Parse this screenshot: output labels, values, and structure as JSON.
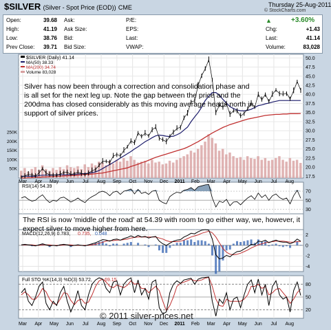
{
  "header": {
    "symbol": "$SILVER",
    "subtitle": "(Silver - Spot Price (EOD))",
    "exchange": "CME",
    "date": "Thursday 25-Aug-2011",
    "copyright": "© StockCharts.com"
  },
  "quote": {
    "open_label": "Open:",
    "open": "39.68",
    "high_label": "High:",
    "high": "41.19",
    "low_label": "Low:",
    "low": "38.76",
    "prev_label": "Prev Close:",
    "prev": "39.71",
    "ask_label": "Ask:",
    "ask": "",
    "asksize_label": "Ask Size:",
    "asksize": "",
    "bid_label": "Bid:",
    "bid": "",
    "bidsize_label": "Bid Size:",
    "bidsize": "",
    "pe_label": "P/E:",
    "pe": "",
    "eps_label": "EPS:",
    "eps": "",
    "last_label": "Last:",
    "last_mid": "",
    "vwap_label": "VWAP:",
    "vwap": "",
    "pct_change": "+3.60%",
    "chg_label": "Chg:",
    "chg": "+1.43",
    "last2_label": "Last:",
    "last": "41.14",
    "volume_label": "Volume:",
    "volume": "83,028"
  },
  "legend": {
    "main": "$SILVER (Daily) 41.14",
    "ma50": "MA(50) 38.33",
    "ma200": "MA(200) 34.74",
    "volume": "Volume 83,028",
    "rsi": "RSI(14) 54.39",
    "macd_a": "MACD(12,26,9) 0.783,",
    "macd_b": "0.735,",
    "macd_c": "0.048",
    "sto_a": "Full STO %K(14,3) %D(3) 53.72,",
    "sto_b": "69.15"
  },
  "annotations": {
    "main": "Silver has now been through a correction and consolidation phase and is all set for the next leg up. Note the gap between the price and the 200dma has closed considerably as this moving average heads north in support of silver prices.",
    "rsi": "The RSI is now 'middle of the road' at 54.39 with room to go either way, we, however, it expect silver to move higher from here.",
    "watermark": "© 2011 silver-prices.net"
  },
  "colors": {
    "ma50": "#1a1a6a",
    "ma200": "#c03030",
    "price": "#000000",
    "volume": "#d8a0a0",
    "rsi_fill": "#6a8aa8",
    "macd_hist": "#3060b0",
    "sto_k": "#000000",
    "sto_d": "#c03030",
    "up": "#2a8a2a"
  },
  "chart_data": [
    {
      "type": "line",
      "panel": "price",
      "x_ticks": [
        "Mar",
        "Apr",
        "May",
        "Jun",
        "Jul",
        "Aug",
        "Sep",
        "Oct",
        "Nov",
        "Dec",
        "2011",
        "Feb",
        "Mar",
        "Apr",
        "May",
        "Jun",
        "Jul",
        "Aug"
      ],
      "y_ticks": [
        17.5,
        20.0,
        22.5,
        25.0,
        27.5,
        30.0,
        32.5,
        35.0,
        37.5,
        40.0,
        42.5,
        45.0,
        47.5,
        50.0
      ],
      "ylim": [
        17,
        51
      ],
      "series": [
        {
          "name": "$SILVER (Daily)",
          "values": [
            17.2,
            17.6,
            18.0,
            17.9,
            17.6,
            18.4,
            19.6,
            18.4,
            17.9,
            17.9,
            17.7,
            18.1,
            18.5,
            18.6,
            18.0,
            18.2,
            18.6,
            18.3,
            18.0,
            18.4,
            19.0,
            19.4,
            20.5,
            21.6,
            21.6,
            21.3,
            23.0,
            23.5,
            23.1,
            24.6,
            25.6,
            27.2,
            26.6,
            29.4,
            28.4,
            29.3,
            28.6,
            30.3,
            30.9,
            28.0,
            27.5,
            27.0,
            28.5,
            29.6,
            30.6,
            31.0,
            33.5,
            34.8,
            38.0,
            38.2,
            42.5,
            45.2,
            47.0,
            49.5,
            44.0,
            35.0,
            37.0,
            36.5,
            37.5,
            34.5,
            35.5,
            35.5,
            34.0,
            34.8,
            36.0,
            37.5,
            36.5,
            40.0,
            38.5,
            40.0,
            38.0,
            40.0,
            41.2,
            40.2,
            40.0,
            40.3,
            38.7,
            41.0,
            43.5,
            41.1
          ]
        },
        {
          "name": "MA(50)",
          "values": [
            17.5,
            17.5,
            17.5,
            17.5,
            17.5,
            17.7,
            17.8,
            17.8,
            17.8,
            17.8,
            17.9,
            17.9,
            17.9,
            17.9,
            18.0,
            18.0,
            18.1,
            18.2,
            18.2,
            18.3,
            18.5,
            18.7,
            19.1,
            19.6,
            20.2,
            20.7,
            21.3,
            21.9,
            22.5,
            23.1,
            23.7,
            24.3,
            25.0,
            25.6,
            26.3,
            27.0,
            27.5,
            28.1,
            28.6,
            28.8,
            28.7,
            28.5,
            28.4,
            28.5,
            28.9,
            29.4,
            30.2,
            31.0,
            32.5,
            33.8,
            35.0,
            36.5,
            38.3,
            39.5,
            40.5,
            40.5,
            39.8,
            38.6,
            37.6,
            36.6,
            36.1,
            35.7,
            35.5,
            35.5,
            35.6,
            35.9,
            36.4,
            36.9,
            37.1,
            37.4,
            37.6,
            37.9,
            38.1,
            38.3,
            38.3,
            38.3,
            38.3,
            38.3,
            38.3,
            38.3
          ]
        },
        {
          "name": "MA(200)",
          "values": [
            17.0,
            17.0,
            17.1,
            17.1,
            17.2,
            17.2,
            17.3,
            17.3,
            17.4,
            17.4,
            17.5,
            17.5,
            17.6,
            17.6,
            17.7,
            17.7,
            17.8,
            17.9,
            18.0,
            18.0,
            18.1,
            18.2,
            18.3,
            18.4,
            18.6,
            18.8,
            19.0,
            19.2,
            19.4,
            19.6,
            19.8,
            20.2,
            20.5,
            20.8,
            21.2,
            21.5,
            21.9,
            22.3,
            22.7,
            23.0,
            23.3,
            23.6,
            23.9,
            24.2,
            24.5,
            24.8,
            25.1,
            25.5,
            26.0,
            26.5,
            27.0,
            27.6,
            28.2,
            28.8,
            29.4,
            29.9,
            30.4,
            30.9,
            31.3,
            31.7,
            32.0,
            32.3,
            32.6,
            32.9,
            33.2,
            33.4,
            33.6,
            33.8,
            34.0,
            34.2,
            34.3,
            34.4,
            34.5,
            34.5,
            34.6,
            34.6,
            34.7,
            34.7,
            34.7,
            34.74
          ]
        }
      ]
    },
    {
      "type": "bar",
      "panel": "volume",
      "y_ticks": [
        "50K",
        "100K",
        "150K",
        "200K",
        "250K"
      ],
      "ylim": [
        0,
        260000
      ],
      "series": [
        {
          "name": "Volume",
          "values": [
            40000,
            55000,
            35000,
            50000,
            60000,
            45000,
            70000,
            50000,
            40000,
            55000,
            45000,
            60000,
            50000,
            70000,
            60000,
            55000,
            65000,
            50000,
            75000,
            60000,
            80000,
            70000,
            90000,
            85000,
            70000,
            95000,
            80000,
            100000,
            90000,
            110000,
            95000,
            120000,
            100000,
            85000,
            90000,
            95000,
            80000,
            100000,
            85000,
            90000,
            75000,
            80000,
            95000,
            85000,
            100000,
            110000,
            120000,
            130000,
            150000,
            140000,
            160000,
            180000,
            200000,
            240000,
            220000,
            190000,
            150000,
            160000,
            130000,
            140000,
            120000,
            110000,
            115000,
            100000,
            120000,
            110000,
            105000,
            120000,
            100000,
            110000,
            95000,
            100000,
            110000,
            120000,
            100000,
            90000,
            110000,
            95000,
            100000,
            83028
          ]
        }
      ]
    },
    {
      "type": "area",
      "panel": "rsi",
      "y_ticks": [
        30,
        50,
        70
      ],
      "ylim": [
        20,
        90
      ],
      "series": [
        {
          "name": "RSI(14)",
          "values": [
            55,
            58,
            52,
            48,
            50,
            57,
            62,
            52,
            45,
            50,
            48,
            55,
            57,
            52,
            46,
            50,
            55,
            49,
            45,
            53,
            58,
            62,
            68,
            70,
            67,
            60,
            68,
            70,
            63,
            70,
            72,
            75,
            64,
            74,
            65,
            68,
            63,
            70,
            72,
            50,
            45,
            42,
            58,
            64,
            68,
            66,
            72,
            74,
            78,
            72,
            80,
            82,
            84,
            85,
            55,
            35,
            48,
            45,
            52,
            38,
            46,
            47,
            40,
            48,
            55,
            60,
            52,
            66,
            56,
            62,
            50,
            60,
            64,
            56,
            52,
            55,
            42,
            60,
            72,
            54.39
          ]
        }
      ]
    },
    {
      "type": "line",
      "panel": "macd",
      "y_ticks": [
        -4,
        -2,
        0,
        2
      ],
      "ylim": [
        -5,
        3
      ],
      "series": [
        {
          "name": "MACD(12,26,9)",
          "values": [
            0.1,
            0.2,
            0.1,
            0.0,
            -0.1,
            0.1,
            0.3,
            0.1,
            -0.1,
            0.0,
            -0.1,
            0.1,
            0.2,
            0.1,
            -0.1,
            0.0,
            0.1,
            0.0,
            -0.1,
            0.1,
            0.3,
            0.5,
            0.8,
            1.1,
            1.0,
            0.8,
            1.1,
            1.2,
            1.0,
            1.3,
            1.5,
            1.8,
            1.5,
            1.9,
            1.6,
            1.7,
            1.4,
            1.6,
            1.7,
            0.8,
            0.3,
            0.0,
            0.4,
            0.8,
            1.0,
            1.1,
            1.6,
            1.9,
            2.3,
            2.2,
            2.6,
            2.9,
            3.0,
            2.9,
            1.2,
            -1.8,
            -2.6,
            -2.4,
            -1.9,
            -2.2,
            -1.6,
            -1.2,
            -1.1,
            -0.7,
            -0.3,
            0.2,
            0.1,
            0.8,
            0.7,
            1.0,
            0.5,
            0.8,
            1.0,
            0.7,
            0.6,
            0.6,
            0.3,
            0.6,
            1.2,
            0.783
          ]
        },
        {
          "name": "Signal",
          "values": [
            0.1,
            0.1,
            0.1,
            0.1,
            0.0,
            0.0,
            0.1,
            0.1,
            0.1,
            0.0,
            0.0,
            0.0,
            0.1,
            0.1,
            0.1,
            0.0,
            0.0,
            0.0,
            0.0,
            0.0,
            0.1,
            0.2,
            0.4,
            0.6,
            0.8,
            0.9,
            0.9,
            1.0,
            1.0,
            1.1,
            1.2,
            1.4,
            1.5,
            1.6,
            1.6,
            1.6,
            1.6,
            1.6,
            1.6,
            1.4,
            1.2,
            0.9,
            0.7,
            0.7,
            0.7,
            0.8,
            1.0,
            1.3,
            1.6,
            1.8,
            2.0,
            2.3,
            2.5,
            2.7,
            2.4,
            1.6,
            0.5,
            -0.6,
            -1.3,
            -1.7,
            -1.8,
            -1.7,
            -1.5,
            -1.2,
            -0.9,
            -0.5,
            -0.2,
            0.1,
            0.3,
            0.5,
            0.6,
            0.7,
            0.8,
            0.8,
            0.8,
            0.7,
            0.6,
            0.6,
            0.7,
            0.735
          ]
        }
      ]
    },
    {
      "type": "line",
      "panel": "stochastic",
      "y_ticks": [
        20,
        50,
        80
      ],
      "ylim": [
        0,
        100
      ],
      "series": [
        {
          "name": "%K(14,3)",
          "values": [
            60,
            70,
            40,
            30,
            50,
            75,
            85,
            35,
            20,
            40,
            30,
            60,
            75,
            40,
            15,
            35,
            65,
            30,
            20,
            55,
            80,
            90,
            95,
            92,
            70,
            60,
            85,
            88,
            55,
            80,
            90,
            95,
            60,
            90,
            55,
            70,
            45,
            85,
            90,
            25,
            10,
            15,
            60,
            80,
            88,
            82,
            90,
            92,
            94,
            80,
            92,
            95,
            96,
            97,
            40,
            5,
            45,
            35,
            60,
            20,
            45,
            50,
            25,
            55,
            80,
            90,
            60,
            92,
            55,
            80,
            30,
            75,
            88,
            55,
            45,
            50,
            15,
            65,
            85,
            53.72
          ]
        },
        {
          "name": "%D(3)",
          "values": [
            55,
            62,
            55,
            45,
            45,
            55,
            70,
            62,
            45,
            35,
            32,
            45,
            60,
            58,
            42,
            32,
            42,
            45,
            35,
            38,
            55,
            75,
            88,
            92,
            85,
            75,
            72,
            78,
            75,
            72,
            78,
            88,
            80,
            82,
            70,
            70,
            60,
            68,
            75,
            65,
            40,
            18,
            30,
            50,
            75,
            82,
            85,
            88,
            92,
            88,
            88,
            90,
            94,
            96,
            75,
            45,
            30,
            28,
            45,
            40,
            40,
            40,
            40,
            45,
            55,
            75,
            75,
            80,
            70,
            75,
            55,
            60,
            68,
            70,
            60,
            50,
            35,
            45,
            60,
            69.15
          ]
        }
      ]
    }
  ]
}
